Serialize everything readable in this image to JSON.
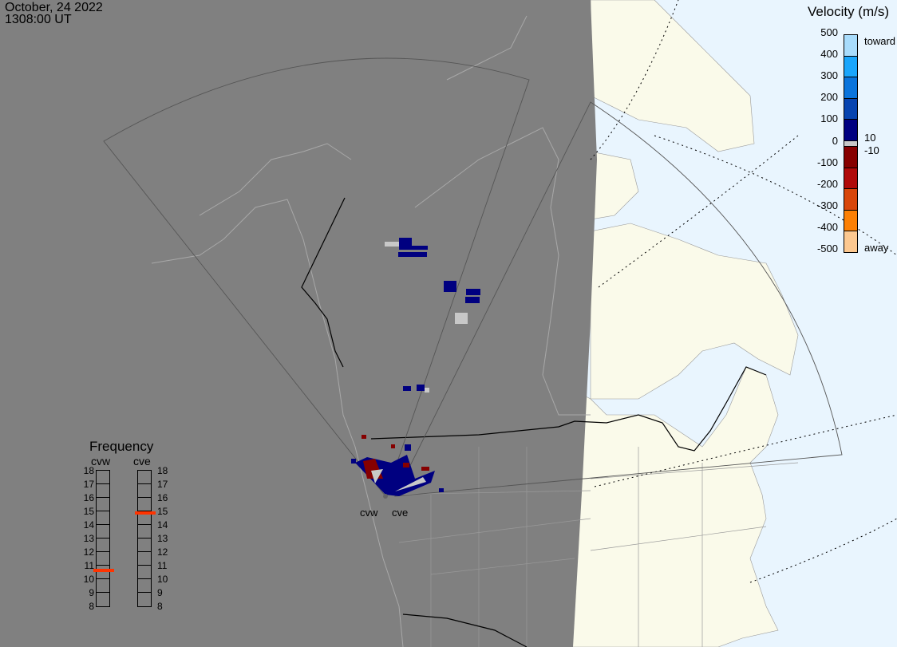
{
  "header": {
    "date": "October, 24 2022",
    "time": "1308:00 UT"
  },
  "velocity_legend": {
    "title": "Velocity (m/s)",
    "ticks": [
      "500",
      "400",
      "300",
      "200",
      "100",
      "0",
      "-100",
      "-200",
      "-300",
      "-400",
      "-500"
    ],
    "toward_label": "toward",
    "away_label": "away",
    "low_pos": "10",
    "low_neg": "-10",
    "colors": [
      "#a8dcfc",
      "#1aa6fc",
      "#0a74dc",
      "#0744b0",
      "#000080",
      "#c8c8c8",
      "#860000",
      "#b00a0a",
      "#d8460a",
      "#fc8004",
      "#fcc890"
    ]
  },
  "frequency": {
    "title": "Frequency",
    "radars": [
      {
        "name": "cvw",
        "freq_mhz": 10.6
      },
      {
        "name": "cve",
        "freq_mhz": 14.8
      }
    ],
    "ticks": [
      "18",
      "17",
      "16",
      "15",
      "14",
      "13",
      "12",
      "11",
      "10",
      "9",
      "8"
    ],
    "range_mhz": [
      8,
      18
    ],
    "marker_color": "#ff3300"
  },
  "radars": {
    "west": "cvw",
    "east": "cve"
  },
  "map_colors": {
    "night": "#808080",
    "land": "#fafaea",
    "ocean": "#e9f5fe"
  }
}
